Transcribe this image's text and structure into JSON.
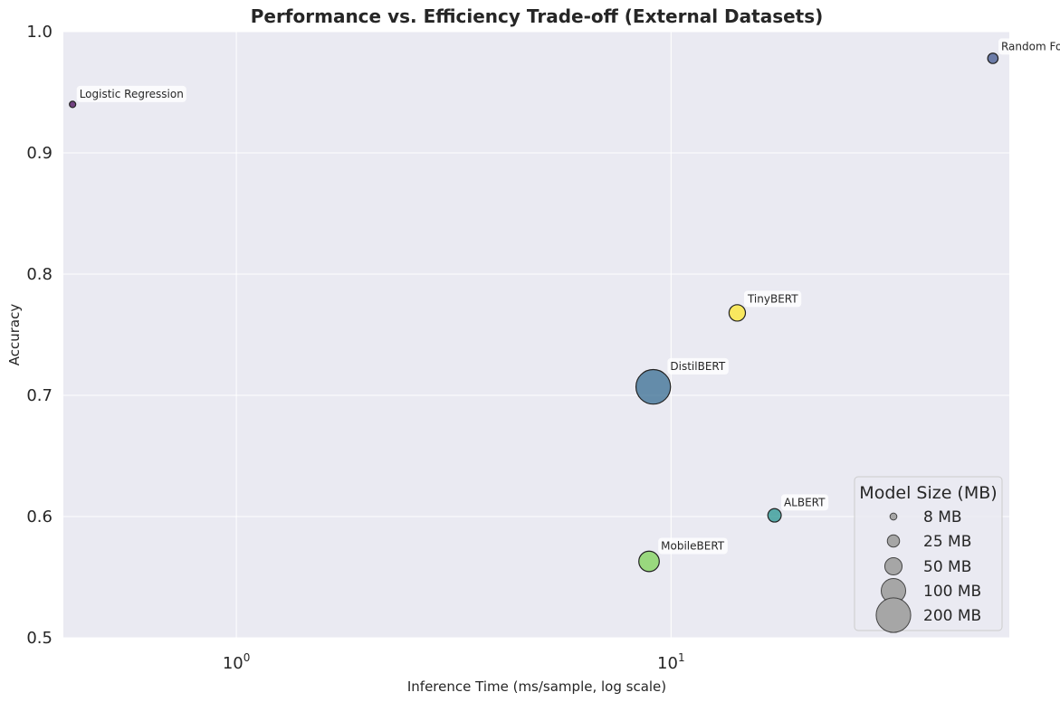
{
  "chart_data": {
    "type": "scatter",
    "title": "Performance vs. Efficiency Trade-off (External Datasets)",
    "xlabel": "Inference Time (ms/sample, log scale)",
    "ylabel": "Accuracy",
    "x_scale": "log",
    "xlim": [
      0.4,
      60
    ],
    "ylim": [
      0.5,
      1.0
    ],
    "y_ticks": [
      0.5,
      0.6,
      0.7,
      0.8,
      0.9,
      1.0
    ],
    "y_tick_labels": [
      "0.5",
      "0.6",
      "0.7",
      "0.8",
      "0.9",
      "1.0"
    ],
    "x_ticks": [
      {
        "value": 1,
        "base": "10",
        "exp": "0"
      },
      {
        "value": 10,
        "base": "10",
        "exp": "1"
      }
    ],
    "grid": true,
    "size_encoding": "Model Size (MB)",
    "color_map": "viridis",
    "points": [
      {
        "label": "Logistic Regression",
        "x": 0.42,
        "y": 0.94,
        "size_mb": 3,
        "color": "#440154"
      },
      {
        "label": "Random Forest",
        "x": 55,
        "y": 0.978,
        "size_mb": 18,
        "color": "#3b528b"
      },
      {
        "label": "TinyBERT",
        "x": 14.2,
        "y": 0.768,
        "size_mb": 45,
        "color": "#fde725"
      },
      {
        "label": "DistilBERT",
        "x": 9.1,
        "y": 0.707,
        "size_mb": 200,
        "color": "#31688e"
      },
      {
        "label": "ALBERT",
        "x": 17.3,
        "y": 0.601,
        "size_mb": 30,
        "color": "#21918c"
      },
      {
        "label": "MobileBERT",
        "x": 8.9,
        "y": 0.563,
        "size_mb": 70,
        "color": "#7ad151"
      }
    ],
    "legend": {
      "title": "Model Size (MB)",
      "placement": "lower-right",
      "entries": [
        {
          "label": "8 MB",
          "size_mb": 8
        },
        {
          "label": "25 MB",
          "size_mb": 25
        },
        {
          "label": "50 MB",
          "size_mb": 50
        },
        {
          "label": "100 MB",
          "size_mb": 100
        },
        {
          "label": "200 MB",
          "size_mb": 200
        }
      ]
    },
    "colors": {
      "plot_background": "#eaeaf2",
      "grid": "#ffffff",
      "legend_marker": "#a6a6a6"
    }
  }
}
